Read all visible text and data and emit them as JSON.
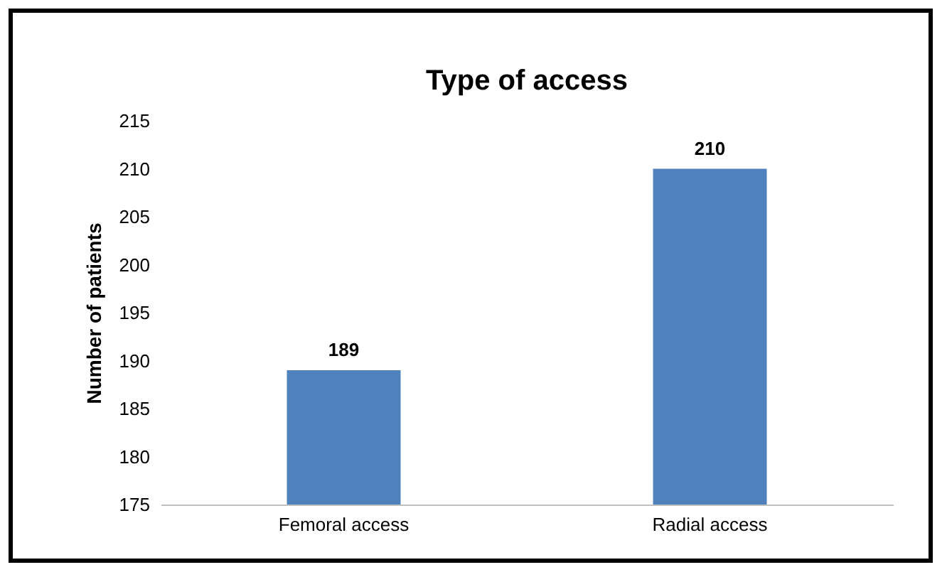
{
  "chart_data": {
    "type": "bar",
    "title": "Type of access",
    "ylabel": "Number of patients",
    "categories": [
      "Femoral access",
      "Radial access"
    ],
    "values": [
      189,
      210
    ],
    "color": "#4f81bd",
    "ylim": [
      175,
      215
    ],
    "yticks": [
      175,
      180,
      185,
      190,
      195,
      200,
      205,
      210,
      215
    ],
    "grid": false,
    "data_labels": true
  }
}
